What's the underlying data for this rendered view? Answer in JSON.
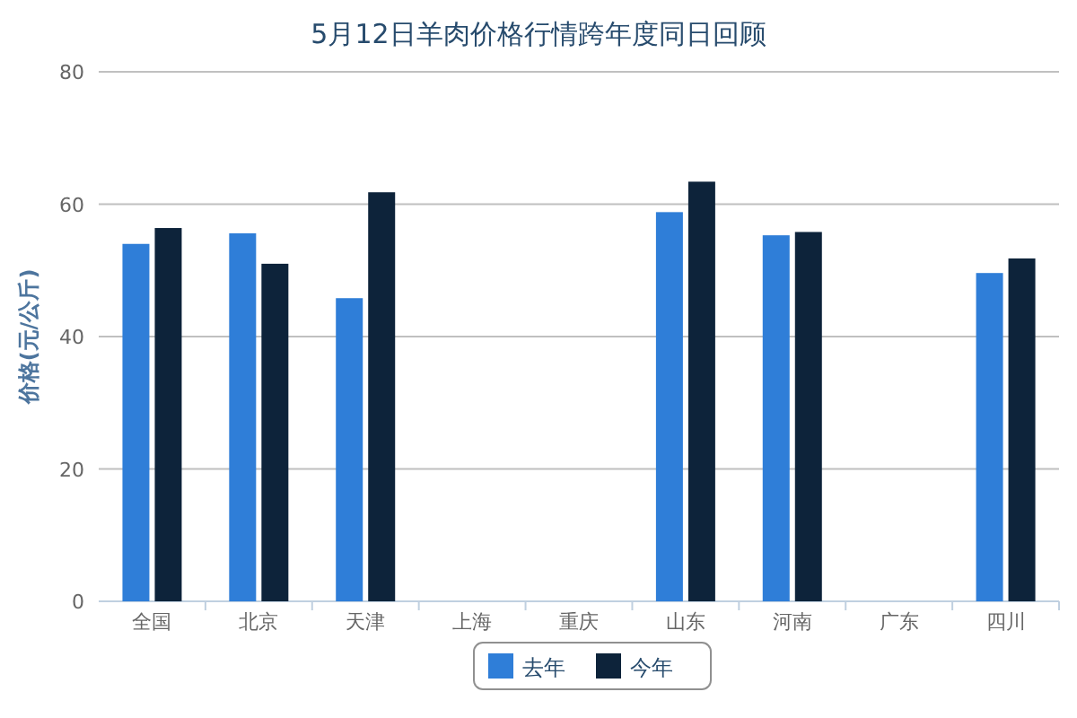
{
  "chart_data": {
    "type": "bar",
    "title": "5月12日羊肉价格行情跨年度同日回顾",
    "ylabel": "价格(元/公斤)",
    "categories": [
      "全国",
      "北京",
      "天津",
      "上海",
      "重庆",
      "山东",
      "河南",
      "广东",
      "四川"
    ],
    "series": [
      {
        "name": "去年",
        "color": "#2f7ed8",
        "values": [
          54,
          55.6,
          45.8,
          null,
          null,
          58.8,
          55.3,
          null,
          49.6
        ]
      },
      {
        "name": "今年",
        "color": "#0d233a",
        "values": [
          56.4,
          51,
          61.8,
          null,
          null,
          63.4,
          55.8,
          null,
          51.8
        ]
      }
    ],
    "ylim": [
      0,
      80
    ],
    "yticks": [
      0,
      20,
      40,
      60,
      80
    ],
    "grid": "y",
    "legend": "bottom"
  }
}
